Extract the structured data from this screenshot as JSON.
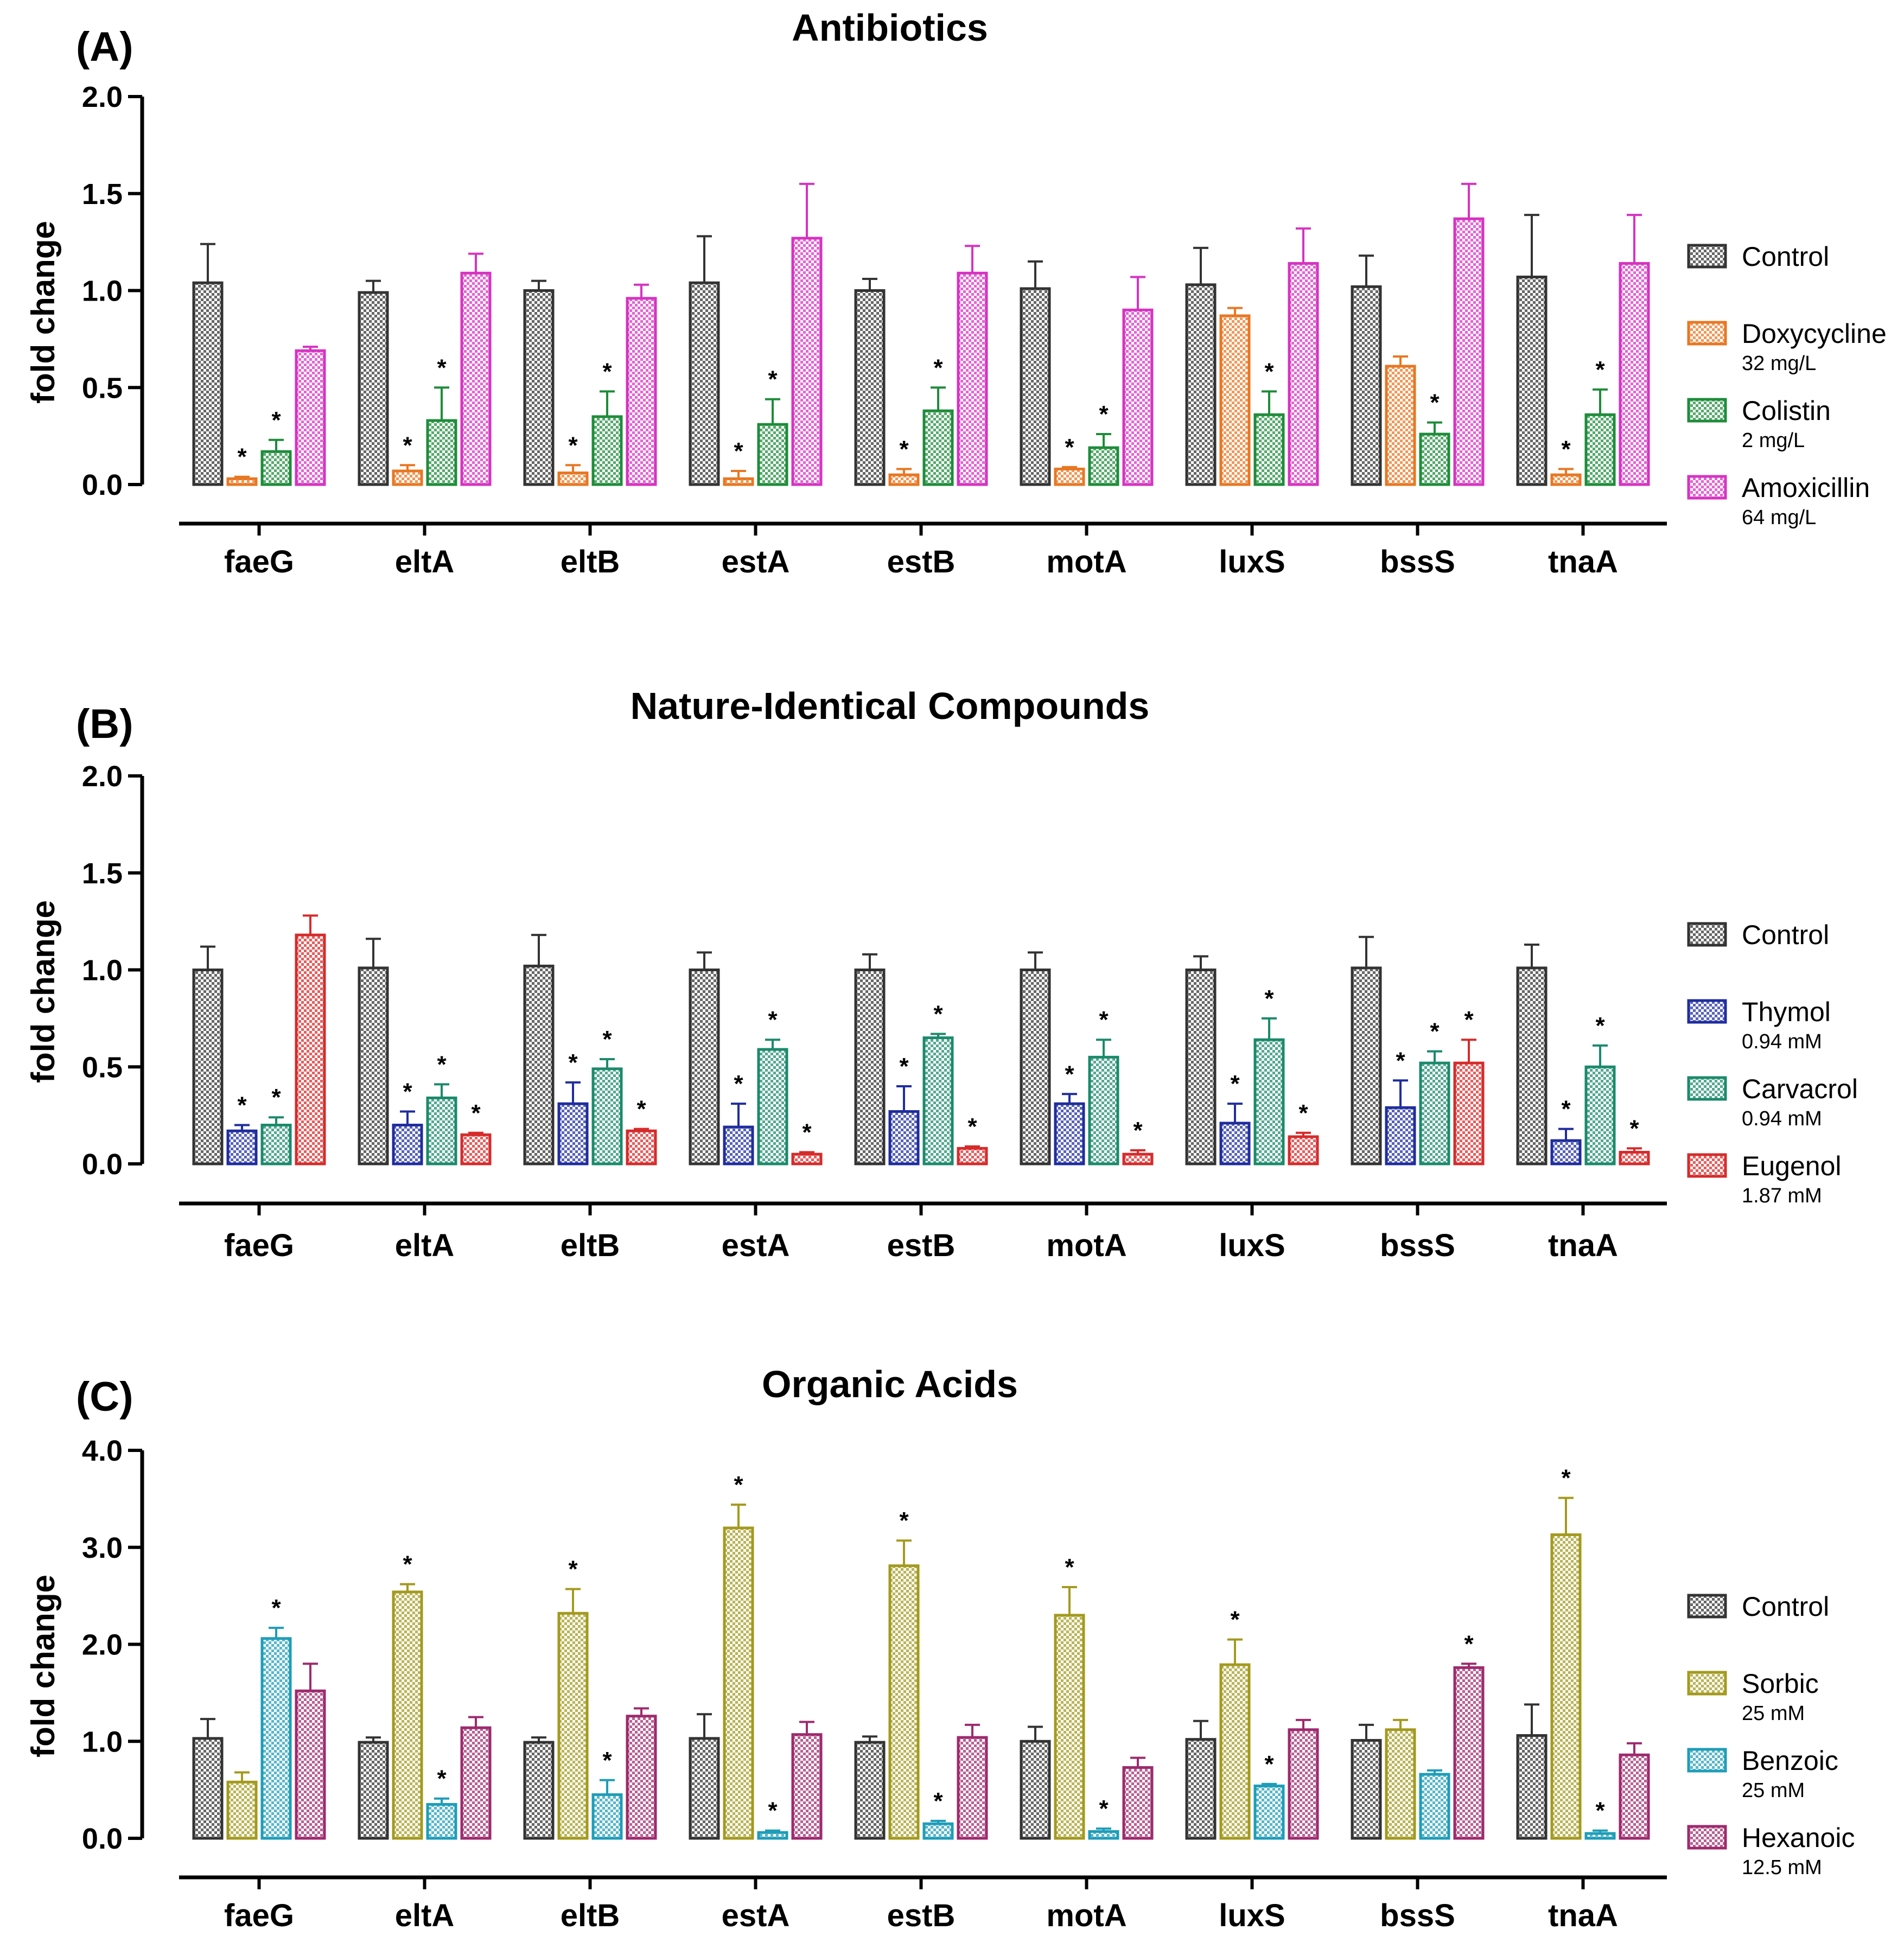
{
  "chart_data": [
    {
      "type": "bar",
      "panel_label": "(A)",
      "title": "Antibiotics",
      "xlabel": "",
      "ylabel": "fold change",
      "ylim": [
        0,
        2.0
      ],
      "yticks": [
        "0.0",
        "0.5",
        "1.0",
        "1.5",
        "2.0"
      ],
      "ytick_values": [
        0,
        0.5,
        1.0,
        1.5,
        2.0
      ],
      "categories": [
        "faeG",
        "eltA",
        "eltB",
        "estA",
        "estB",
        "motA",
        "luxS",
        "bssS",
        "tnaA"
      ],
      "series": [
        {
          "name": "Control",
          "sublabel": "",
          "color": "#333333",
          "values": [
            1.04,
            0.99,
            1.0,
            1.04,
            1.0,
            1.01,
            1.03,
            1.02,
            1.07
          ],
          "errors": [
            0.2,
            0.06,
            0.05,
            0.24,
            0.06,
            0.14,
            0.19,
            0.16,
            0.32
          ],
          "sig": [
            false,
            false,
            false,
            false,
            false,
            false,
            false,
            false,
            false
          ]
        },
        {
          "name": "Doxycycline",
          "sublabel": "32 mg/L",
          "color": "#E87722",
          "values": [
            0.03,
            0.07,
            0.06,
            0.03,
            0.05,
            0.08,
            0.87,
            0.61,
            0.05
          ],
          "errors": [
            0.01,
            0.03,
            0.04,
            0.04,
            0.03,
            0.01,
            0.04,
            0.05,
            0.03
          ],
          "sig": [
            true,
            true,
            true,
            true,
            true,
            true,
            false,
            false,
            true
          ]
        },
        {
          "name": "Colistin",
          "sublabel": "2 mg/L",
          "color": "#1E8C3A",
          "values": [
            0.17,
            0.33,
            0.35,
            0.31,
            0.38,
            0.19,
            0.36,
            0.26,
            0.36
          ],
          "errors": [
            0.06,
            0.17,
            0.13,
            0.13,
            0.12,
            0.07,
            0.12,
            0.06,
            0.13
          ],
          "sig": [
            true,
            true,
            true,
            true,
            true,
            true,
            true,
            true,
            true
          ]
        },
        {
          "name": "Amoxicillin",
          "sublabel": "64 mg/L",
          "color": "#D633C2",
          "values": [
            0.69,
            1.09,
            0.96,
            1.27,
            1.09,
            0.9,
            1.14,
            1.37,
            1.14
          ],
          "errors": [
            0.02,
            0.1,
            0.07,
            0.28,
            0.14,
            0.17,
            0.18,
            0.18,
            0.25
          ],
          "sig": [
            false,
            false,
            false,
            false,
            false,
            false,
            false,
            false,
            false
          ]
        }
      ]
    },
    {
      "type": "bar",
      "panel_label": "(B)",
      "title": "Nature-Identical Compounds",
      "xlabel": "",
      "ylabel": "fold change",
      "ylim": [
        0,
        2.0
      ],
      "yticks": [
        "0.0",
        "0.5",
        "1.0",
        "1.5",
        "2.0"
      ],
      "ytick_values": [
        0,
        0.5,
        1.0,
        1.5,
        2.0
      ],
      "categories": [
        "faeG",
        "eltA",
        "eltB",
        "estA",
        "estB",
        "motA",
        "luxS",
        "bssS",
        "tnaA"
      ],
      "series": [
        {
          "name": "Control",
          "sublabel": "",
          "color": "#333333",
          "values": [
            1.0,
            1.01,
            1.02,
            1.0,
            1.0,
            1.0,
            1.0,
            1.01,
            1.01
          ],
          "errors": [
            0.12,
            0.15,
            0.16,
            0.09,
            0.08,
            0.09,
            0.07,
            0.16,
            0.12
          ],
          "sig": [
            false,
            false,
            false,
            false,
            false,
            false,
            false,
            false,
            false
          ]
        },
        {
          "name": "Thymol",
          "sublabel": "0.94 mM",
          "color": "#1F2D9E",
          "values": [
            0.17,
            0.2,
            0.31,
            0.19,
            0.27,
            0.31,
            0.21,
            0.29,
            0.12
          ],
          "errors": [
            0.03,
            0.07,
            0.11,
            0.12,
            0.13,
            0.05,
            0.1,
            0.14,
            0.06
          ],
          "sig": [
            true,
            true,
            true,
            true,
            true,
            true,
            true,
            true,
            true
          ]
        },
        {
          "name": "Carvacrol",
          "sublabel": "0.94 mM",
          "color": "#1B8A6B",
          "values": [
            0.2,
            0.34,
            0.49,
            0.59,
            0.65,
            0.55,
            0.64,
            0.52,
            0.5
          ],
          "errors": [
            0.04,
            0.07,
            0.05,
            0.05,
            0.02,
            0.09,
            0.11,
            0.06,
            0.11
          ],
          "sig": [
            true,
            true,
            true,
            true,
            true,
            true,
            true,
            true,
            true
          ]
        },
        {
          "name": "Eugenol",
          "sublabel": "1.87 mM",
          "color": "#D62B2B",
          "values": [
            1.18,
            0.15,
            0.17,
            0.05,
            0.08,
            0.05,
            0.14,
            0.52,
            0.06
          ],
          "errors": [
            0.1,
            0.01,
            0.01,
            0.01,
            0.01,
            0.02,
            0.02,
            0.12,
            0.02
          ],
          "sig": [
            false,
            true,
            true,
            true,
            true,
            true,
            true,
            true,
            true
          ]
        }
      ]
    },
    {
      "type": "bar",
      "panel_label": "(C)",
      "title": "Organic Acids",
      "xlabel": "",
      "ylabel": "fold change",
      "ylim": [
        0,
        4.0
      ],
      "yticks": [
        "0.0",
        "1.0",
        "2.0",
        "3.0",
        "4.0"
      ],
      "ytick_values": [
        0,
        1.0,
        2.0,
        3.0,
        4.0
      ],
      "categories": [
        "faeG",
        "eltA",
        "eltB",
        "estA",
        "estB",
        "motA",
        "luxS",
        "bssS",
        "tnaA"
      ],
      "series": [
        {
          "name": "Control",
          "sublabel": "",
          "color": "#333333",
          "values": [
            1.03,
            0.99,
            0.99,
            1.03,
            0.99,
            1.0,
            1.02,
            1.01,
            1.06
          ],
          "errors": [
            0.2,
            0.05,
            0.05,
            0.25,
            0.06,
            0.15,
            0.19,
            0.16,
            0.32
          ],
          "sig": [
            false,
            false,
            false,
            false,
            false,
            false,
            false,
            false,
            false
          ]
        },
        {
          "name": "Sorbic",
          "sublabel": "25 mM",
          "color": "#A39A1E",
          "values": [
            0.58,
            2.54,
            2.32,
            3.2,
            2.81,
            2.3,
            1.79,
            1.12,
            3.13
          ],
          "errors": [
            0.1,
            0.08,
            0.25,
            0.24,
            0.26,
            0.29,
            0.26,
            0.1,
            0.38
          ],
          "sig": [
            false,
            true,
            true,
            true,
            true,
            true,
            true,
            false,
            true
          ]
        },
        {
          "name": "Benzoic",
          "sublabel": "25 mM",
          "color": "#1E9DB8",
          "values": [
            2.06,
            0.35,
            0.45,
            0.06,
            0.15,
            0.07,
            0.54,
            0.66,
            0.05
          ],
          "errors": [
            0.11,
            0.06,
            0.15,
            0.02,
            0.03,
            0.03,
            0.02,
            0.04,
            0.03
          ],
          "sig": [
            true,
            true,
            true,
            true,
            true,
            true,
            true,
            false,
            true
          ]
        },
        {
          "name": "Hexanoic",
          "sublabel": "12.5 mM",
          "color": "#9E2A6E",
          "values": [
            1.52,
            1.14,
            1.26,
            1.07,
            1.04,
            0.73,
            1.12,
            1.76,
            0.86
          ],
          "errors": [
            0.28,
            0.11,
            0.08,
            0.13,
            0.13,
            0.1,
            0.1,
            0.04,
            0.12
          ],
          "sig": [
            false,
            false,
            false,
            false,
            false,
            false,
            false,
            true,
            false
          ]
        }
      ]
    }
  ]
}
